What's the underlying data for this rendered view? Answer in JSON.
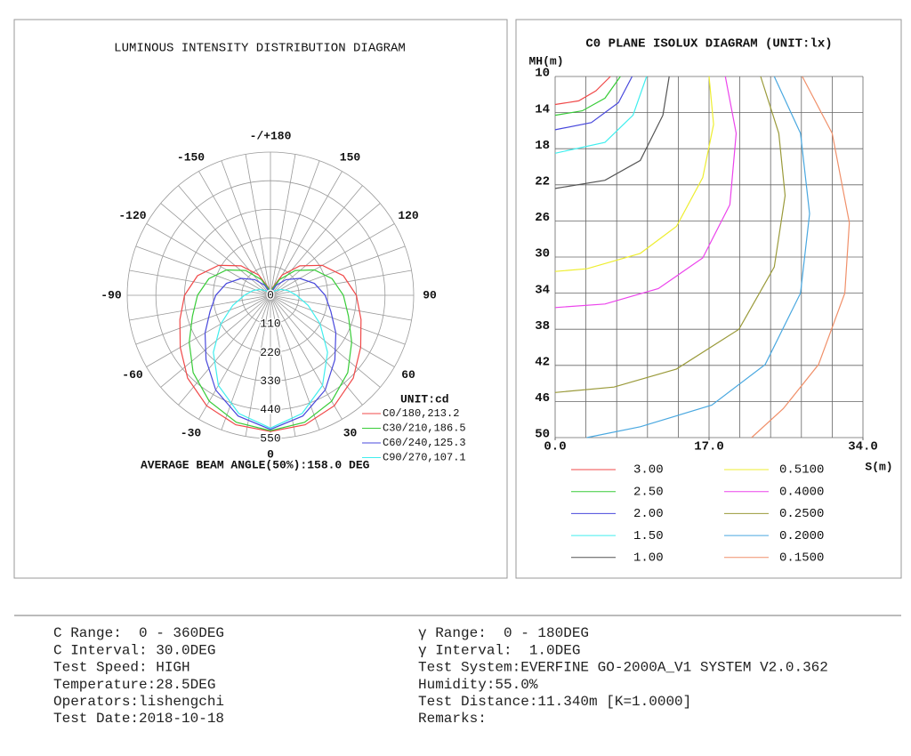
{
  "chart_data": [
    {
      "type": "polar",
      "title": "LUMINOUS INTENSITY DISTRIBUTION DIAGRAM",
      "unit_label": "UNIT:cd",
      "annotation": "AVERAGE BEAM ANGLE(50%):158.0 DEG",
      "angles": [
        -180,
        -165,
        -150,
        -135,
        -120,
        -105,
        -90,
        -75,
        -60,
        -45,
        -30,
        -15,
        0,
        15,
        30,
        45,
        60,
        75,
        90,
        105,
        120,
        135,
        150,
        165,
        180
      ],
      "series": [
        {
          "name": "C0/180,213.2",
          "color": "#f04848",
          "values": [
            0,
            30,
            90,
            160,
            230,
            290,
            330,
            360,
            400,
            450,
            490,
            515,
            523,
            515,
            490,
            450,
            400,
            360,
            330,
            290,
            230,
            160,
            90,
            30,
            0
          ]
        },
        {
          "name": "C30/210,186.5",
          "color": "#38cc38",
          "values": [
            0,
            25,
            70,
            135,
            195,
            245,
            280,
            310,
            360,
            420,
            470,
            505,
            520,
            505,
            470,
            420,
            360,
            310,
            280,
            245,
            195,
            135,
            70,
            25,
            0
          ]
        },
        {
          "name": "C60/240,125.3",
          "color": "#4848dc",
          "values": [
            0,
            15,
            45,
            85,
            130,
            175,
            210,
            240,
            290,
            350,
            420,
            480,
            515,
            480,
            420,
            350,
            290,
            240,
            210,
            175,
            130,
            85,
            45,
            15,
            0
          ]
        },
        {
          "name": "C90/270,107.1",
          "color": "#40eeee",
          "values": [
            0,
            3,
            10,
            25,
            45,
            70,
            100,
            150,
            220,
            310,
            400,
            470,
            510,
            470,
            400,
            310,
            220,
            150,
            100,
            70,
            45,
            25,
            10,
            3,
            0
          ]
        }
      ],
      "rlim": [
        0,
        550
      ],
      "rticks": [
        0,
        110,
        220,
        330,
        440,
        550
      ],
      "angle_ticks": [
        {
          "value": 180,
          "label": "-/+180"
        },
        -150,
        150,
        -120,
        120,
        -90,
        90,
        -60,
        60,
        -30,
        30,
        0
      ],
      "angle_grid": [
        -170,
        -160,
        -150,
        -140,
        -130,
        -120,
        -110,
        -100,
        -90,
        -80,
        -70,
        -60,
        -50,
        -40,
        -30,
        -20,
        -10,
        0,
        10,
        20,
        30,
        40,
        50,
        60,
        70,
        80,
        90,
        100,
        110,
        120,
        130,
        140,
        150,
        160,
        170,
        180
      ]
    },
    {
      "type": "line",
      "title": "C0 PLANE ISOLUX DIAGRAM (UNIT:lx)",
      "y_label": "MH(m)",
      "x_label": "S(m)",
      "xlim": [
        0,
        34
      ],
      "ylim": [
        10,
        50
      ],
      "y_inverted": true,
      "xticks": [
        {
          "value": 0,
          "label": "0.0"
        },
        {
          "value": 17,
          "label": "17.0"
        },
        {
          "value": 34,
          "label": "34.0"
        }
      ],
      "xgrid": [
        0,
        3.4,
        6.8,
        10.2,
        13.6,
        17,
        20.4,
        23.8,
        27.2,
        30.6,
        34
      ],
      "yticks": [
        10,
        14,
        18,
        22,
        26,
        30,
        34,
        38,
        42,
        46,
        50
      ],
      "series": [
        {
          "name": "3.00",
          "color": "#f04848",
          "x": [
            6.1,
            4.5,
            2.6,
            0
          ],
          "values": [
            10,
            11.6,
            12.7,
            13.1
          ]
        },
        {
          "name": "2.50",
          "color": "#38cc38",
          "x": [
            7.2,
            5.5,
            3.0,
            0
          ],
          "values": [
            10,
            12.4,
            13.8,
            14.3
          ]
        },
        {
          "name": "2.00",
          "color": "#4848dc",
          "x": [
            8.5,
            7.0,
            4.0,
            0
          ],
          "values": [
            10,
            12.9,
            15.1,
            15.9
          ]
        },
        {
          "name": "1.50",
          "color": "#40eeee",
          "x": [
            10.1,
            8.6,
            5.5,
            0
          ],
          "values": [
            10,
            14.3,
            17.3,
            18.5
          ]
        },
        {
          "name": "1.00",
          "color": "#555555",
          "x": [
            12.6,
            11.9,
            9.4,
            5.5,
            0
          ],
          "values": [
            10,
            14.3,
            19.3,
            21.5,
            22.4
          ]
        },
        {
          "name": "0.5100",
          "color": "#eeee30",
          "x": [
            17.0,
            17.5,
            16.3,
            13.4,
            9.4,
            3.5,
            0
          ],
          "values": [
            10,
            15.3,
            21.2,
            26.6,
            29.6,
            31.3,
            31.6
          ]
        },
        {
          "name": "0.4000",
          "color": "#ec44ec",
          "x": [
            18.8,
            20.0,
            19.3,
            16.3,
            11.4,
            5.5,
            0
          ],
          "values": [
            10,
            16.3,
            24.2,
            30.1,
            33.5,
            35.2,
            35.6
          ]
        },
        {
          "name": "0.2500",
          "color": "#9a9a3a",
          "x": [
            22.7,
            24.7,
            25.4,
            24.2,
            20.3,
            13.4,
            6.5,
            0
          ],
          "values": [
            10,
            16.3,
            23.2,
            31.1,
            38.0,
            42.4,
            44.4,
            45.0
          ]
        },
        {
          "name": "0.2000",
          "color": "#4aa8e0",
          "x": [
            24.2,
            27.1,
            28.1,
            27.1,
            23.2,
            17.3,
            9.4,
            3.5
          ],
          "values": [
            10,
            16.3,
            25.2,
            34.0,
            41.9,
            46.4,
            48.8,
            50
          ]
        },
        {
          "name": "0.1500",
          "color": "#f0906a",
          "x": [
            27.3,
            30.6,
            32.5,
            32.0,
            29.1,
            25.2,
            21.7
          ],
          "values": [
            10,
            16.3,
            26.2,
            34.0,
            41.9,
            46.8,
            50
          ]
        }
      ]
    }
  ],
  "footer": {
    "left": [
      "C Range:  0 - 360DEG",
      "C Interval: 30.0DEG",
      "Test Speed: HIGH",
      "Temperature:28.5DEG",
      "Operators:lishengchi",
      "Test Date:2018-10-18"
    ],
    "right": [
      "γ Range:  0 - 180DEG",
      "γ Interval:  1.0DEG",
      "Test System:EVERFINE GO-2000A_V1 SYSTEM V2.0.362",
      "Humidity:55.0%",
      "Test Distance:11.340m [K=1.0000]",
      "Remarks:"
    ]
  }
}
